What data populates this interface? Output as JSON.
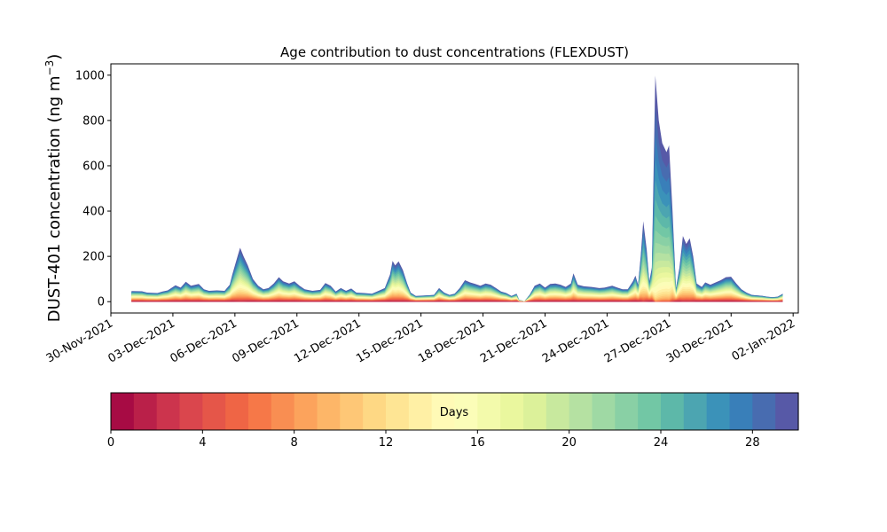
{
  "chart_data": {
    "type": "area",
    "title": "Age contribution to dust concentrations (FLEXDUST)",
    "ylabel": "DUST-401 concentration (ng m",
    "ylabel_sup": "−3",
    "ylabel_close": ")",
    "ylim": [
      -50,
      1050
    ],
    "yticks": [
      0,
      200,
      400,
      600,
      800,
      1000
    ],
    "xlim": [
      "2021-11-30T00:00",
      "2022-01-02T06:00"
    ],
    "xticks": [
      "2021-11-30",
      "2021-12-03",
      "2021-12-06",
      "2021-12-09",
      "2021-12-12",
      "2021-12-15",
      "2021-12-18",
      "2021-12-21",
      "2021-12-24",
      "2021-12-27",
      "2021-12-30",
      "2022-01-02"
    ],
    "xtick_labels": [
      "30-Nov-2021",
      "03-Dec-2021",
      "06-Dec-2021",
      "09-Dec-2021",
      "12-Dec-2021",
      "15-Dec-2021",
      "18-Dec-2021",
      "21-Dec-2021",
      "24-Dec-2021",
      "27-Dec-2021",
      "30-Dec-2021",
      "02-Jan-2022"
    ],
    "grid": false,
    "colormap": "Spectral",
    "total": [
      [
        "2021-12-01T00:00",
        47
      ],
      [
        "2021-12-01T12:00",
        46
      ],
      [
        "2021-12-01T18:00",
        40
      ],
      [
        "2021-12-02T06:00",
        38
      ],
      [
        "2021-12-02T12:00",
        45
      ],
      [
        "2021-12-02T18:00",
        50
      ],
      [
        "2021-12-03T03:00",
        72
      ],
      [
        "2021-12-03T09:00",
        62
      ],
      [
        "2021-12-03T15:00",
        88
      ],
      [
        "2021-12-03T21:00",
        70
      ],
      [
        "2021-12-04T06:00",
        78
      ],
      [
        "2021-12-04T12:00",
        55
      ],
      [
        "2021-12-04T18:00",
        48
      ],
      [
        "2021-12-05T03:00",
        50
      ],
      [
        "2021-12-05T12:00",
        48
      ],
      [
        "2021-12-05T18:00",
        75
      ],
      [
        "2021-12-05T21:00",
        120
      ],
      [
        "2021-12-06T03:00",
        200
      ],
      [
        "2021-12-06T06:00",
        238
      ],
      [
        "2021-12-06T10:00",
        200
      ],
      [
        "2021-12-06T15:00",
        160
      ],
      [
        "2021-12-06T21:00",
        100
      ],
      [
        "2021-12-07T03:00",
        70
      ],
      [
        "2021-12-07T09:00",
        55
      ],
      [
        "2021-12-07T15:00",
        60
      ],
      [
        "2021-12-07T21:00",
        80
      ],
      [
        "2021-12-08T03:00",
        108
      ],
      [
        "2021-12-08T08:00",
        90
      ],
      [
        "2021-12-08T15:00",
        80
      ],
      [
        "2021-12-08T21:00",
        90
      ],
      [
        "2021-12-09T03:00",
        70
      ],
      [
        "2021-12-09T09:00",
        55
      ],
      [
        "2021-12-09T18:00",
        48
      ],
      [
        "2021-12-10T03:00",
        52
      ],
      [
        "2021-12-10T09:00",
        82
      ],
      [
        "2021-12-10T15:00",
        70
      ],
      [
        "2021-12-10T21:00",
        45
      ],
      [
        "2021-12-11T03:00",
        60
      ],
      [
        "2021-12-11T09:00",
        48
      ],
      [
        "2021-12-11T15:00",
        58
      ],
      [
        "2021-12-11T21:00",
        40
      ],
      [
        "2021-12-12T06:00",
        38
      ],
      [
        "2021-12-12T15:00",
        35
      ],
      [
        "2021-12-12T21:00",
        45
      ],
      [
        "2021-12-13T06:00",
        60
      ],
      [
        "2021-12-13T12:00",
        120
      ],
      [
        "2021-12-13T15:00",
        180
      ],
      [
        "2021-12-13T18:00",
        160
      ],
      [
        "2021-12-13T22:00",
        178
      ],
      [
        "2021-12-14T03:00",
        140
      ],
      [
        "2021-12-14T08:00",
        80
      ],
      [
        "2021-12-14T12:00",
        40
      ],
      [
        "2021-12-14T18:00",
        25
      ],
      [
        "2021-12-15T06:00",
        28
      ],
      [
        "2021-12-15T15:00",
        30
      ],
      [
        "2021-12-15T21:00",
        60
      ],
      [
        "2021-12-16T03:00",
        40
      ],
      [
        "2021-12-16T09:00",
        30
      ],
      [
        "2021-12-16T15:00",
        35
      ],
      [
        "2021-12-16T21:00",
        60
      ],
      [
        "2021-12-17T03:00",
        95
      ],
      [
        "2021-12-17T09:00",
        85
      ],
      [
        "2021-12-17T15:00",
        78
      ],
      [
        "2021-12-17T21:00",
        70
      ],
      [
        "2021-12-18T03:00",
        80
      ],
      [
        "2021-12-18T09:00",
        75
      ],
      [
        "2021-12-18T15:00",
        60
      ],
      [
        "2021-12-18T21:00",
        45
      ],
      [
        "2021-12-19T03:00",
        38
      ],
      [
        "2021-12-19T09:00",
        25
      ],
      [
        "2021-12-19T15:00",
        35
      ],
      [
        "2021-12-19T18:00",
        8
      ],
      [
        "2021-12-20T00:00",
        2
      ],
      [
        "2021-12-20T06:00",
        30
      ],
      [
        "2021-12-20T12:00",
        70
      ],
      [
        "2021-12-20T18:00",
        80
      ],
      [
        "2021-12-21T00:00",
        62
      ],
      [
        "2021-12-21T06:00",
        78
      ],
      [
        "2021-12-21T12:00",
        80
      ],
      [
        "2021-12-21T18:00",
        75
      ],
      [
        "2021-12-22T00:00",
        65
      ],
      [
        "2021-12-22T06:00",
        80
      ],
      [
        "2021-12-22T09:00",
        125
      ],
      [
        "2021-12-22T14:00",
        75
      ],
      [
        "2021-12-22T21:00",
        68
      ],
      [
        "2021-12-23T06:00",
        65
      ],
      [
        "2021-12-23T15:00",
        60
      ],
      [
        "2021-12-23T21:00",
        62
      ],
      [
        "2021-12-24T06:00",
        70
      ],
      [
        "2021-12-24T12:00",
        62
      ],
      [
        "2021-12-24T18:00",
        55
      ],
      [
        "2021-12-25T00:00",
        55
      ],
      [
        "2021-12-25T06:00",
        90
      ],
      [
        "2021-12-25T09:00",
        115
      ],
      [
        "2021-12-25T12:00",
        75
      ],
      [
        "2021-12-25T15:00",
        200
      ],
      [
        "2021-12-25T18:00",
        355
      ],
      [
        "2021-12-25T22:00",
        230
      ],
      [
        "2021-12-26T01:00",
        90
      ],
      [
        "2021-12-26T04:00",
        150
      ],
      [
        "2021-12-26T08:00",
        998
      ],
      [
        "2021-12-26T12:00",
        800
      ],
      [
        "2021-12-26T16:00",
        700
      ],
      [
        "2021-12-26T21:00",
        660
      ],
      [
        "2021-12-27T00:00",
        690
      ],
      [
        "2021-12-27T04:00",
        400
      ],
      [
        "2021-12-27T08:00",
        60
      ],
      [
        "2021-12-27T12:00",
        150
      ],
      [
        "2021-12-27T16:00",
        290
      ],
      [
        "2021-12-27T20:00",
        255
      ],
      [
        "2021-12-28T00:00",
        280
      ],
      [
        "2021-12-28T04:00",
        200
      ],
      [
        "2021-12-28T08:00",
        80
      ],
      [
        "2021-12-28T14:00",
        65
      ],
      [
        "2021-12-28T18:00",
        85
      ],
      [
        "2021-12-29T00:00",
        75
      ],
      [
        "2021-12-29T06:00",
        85
      ],
      [
        "2021-12-29T12:00",
        95
      ],
      [
        "2021-12-29T18:00",
        108
      ],
      [
        "2021-12-30T00:00",
        110
      ],
      [
        "2021-12-30T06:00",
        80
      ],
      [
        "2021-12-30T12:00",
        55
      ],
      [
        "2021-12-30T18:00",
        40
      ],
      [
        "2021-12-31T00:00",
        30
      ],
      [
        "2021-12-31T06:00",
        28
      ],
      [
        "2021-12-31T12:00",
        26
      ],
      [
        "2021-12-31T18:00",
        22
      ],
      [
        "2022-01-01T00:00",
        20
      ],
      [
        "2022-01-01T06:00",
        22
      ],
      [
        "2022-01-01T12:00",
        35
      ]
    ],
    "colorbar": {
      "label": "Days",
      "min": 0,
      "max": 30,
      "bins": 30,
      "ticks": [
        0,
        4,
        8,
        12,
        16,
        20,
        24,
        28
      ]
    }
  }
}
